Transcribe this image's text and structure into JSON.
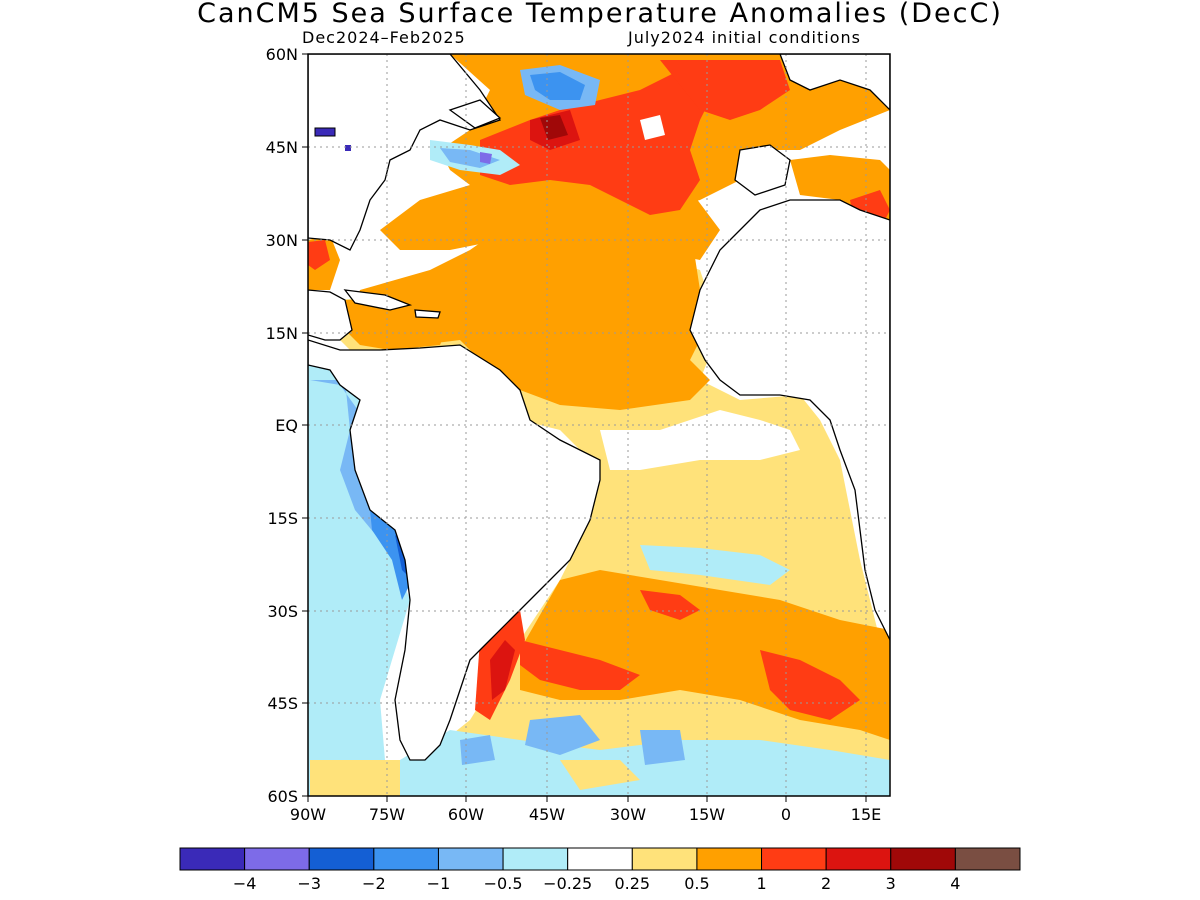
{
  "title": "CanCM5 Sea Surface Temperature Anomalies (DecC)",
  "period_label": "Dec2024–Feb2025",
  "init_label": "July2024 initial conditions",
  "lat_labels": [
    "60N",
    "45N",
    "30N",
    "15N",
    "EQ",
    "15S",
    "30S",
    "45S",
    "60S"
  ],
  "lon_labels": [
    "90W",
    "75W",
    "60W",
    "45W",
    "30W",
    "15W",
    "0",
    "15E"
  ],
  "colorbar": {
    "colors": [
      "#3a2ab8",
      "#7d6be8",
      "#145fd4",
      "#3c93f0",
      "#78b8f5",
      "#b0ecf8",
      "#ffffff",
      "#ffe27a",
      "#ffa000",
      "#ff3c14",
      "#dc1410",
      "#a00808",
      "#7a4e42"
    ],
    "tick_labels": [
      "−4",
      "−3",
      "−2",
      "−1",
      "−0.5",
      "−0.25",
      "0.25",
      "0.5",
      "1",
      "2",
      "3",
      "4"
    ]
  }
}
